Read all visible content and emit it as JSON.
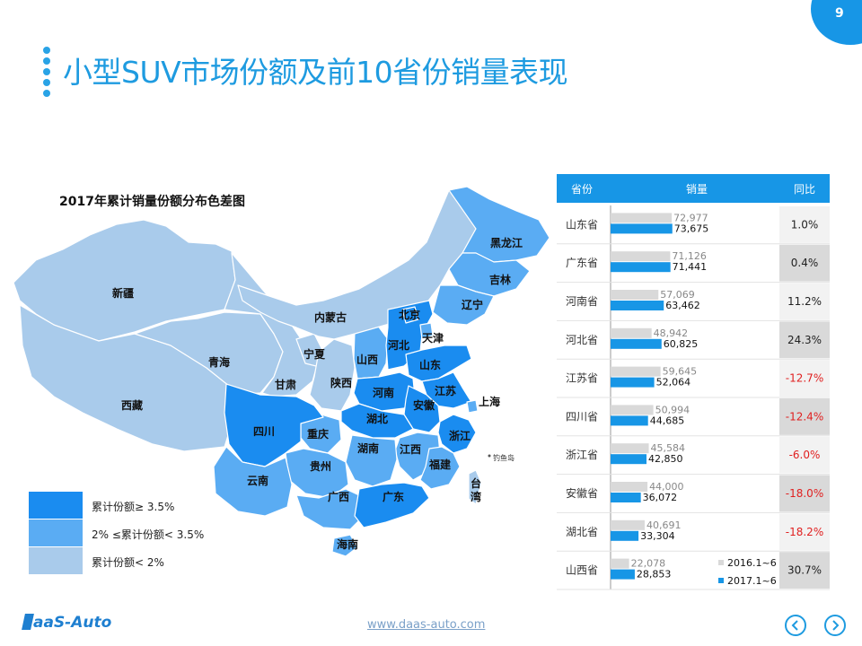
{
  "page": {
    "title": "小型SUV市场份额及前10省份销量表现",
    "page_number": "9",
    "footer_url": "www.daas-auto.com",
    "logo_text": "aaS-Auto"
  },
  "map": {
    "title": "2017年累计销量份额分布色差图",
    "legend": [
      {
        "label": "累计份额≥ 3.5%",
        "color": "#1a8cf0"
      },
      {
        "label": "2% ≤累计份额< 3.5%",
        "color": "#5aacf3"
      },
      {
        "label": "累计份额< 2%",
        "color": "#a9cbeb"
      }
    ],
    "labels": {
      "xinjiang": "新疆",
      "xizang": "西藏",
      "qinghai": "青海",
      "gansu": "甘肃",
      "neimenggu": "内蒙古",
      "ningxia": "宁夏",
      "shaanxi": "陕西",
      "shanxi": "山西",
      "sichuan": "四川",
      "chongqing": "重庆",
      "yunnan": "云南",
      "guizhou": "贵州",
      "guangxi": "广西",
      "guangdong": "广东",
      "hainan": "海南",
      "hunan": "湖南",
      "hubei": "湖北",
      "henan": "河南",
      "hebei": "河北",
      "beijing": "北京",
      "tianjin": "天津",
      "shandong": "山东",
      "jiangsu": "江苏",
      "anhui": "安徽",
      "shanghai": "上海",
      "zhejiang": "浙江",
      "jiangxi": "江西",
      "fujian": "福建",
      "taiwan_1": "台",
      "taiwan_2": "湾",
      "liaoning": "辽宁",
      "jilin": "吉林",
      "heilongjiang": "黑龙江",
      "diaoyudao": "钓鱼岛"
    }
  },
  "chart_data": {
    "type": "bar",
    "header": {
      "col1": "省份",
      "col2": "销量",
      "col3": "同比"
    },
    "categories": [
      "山东省",
      "广东省",
      "河南省",
      "河北省",
      "江苏省",
      "四川省",
      "浙江省",
      "安徽省",
      "湖北省",
      "山西省"
    ],
    "series": [
      {
        "name": "2016.1~6",
        "values": [
          72977,
          71126,
          57069,
          48942,
          59645,
          50994,
          45584,
          44000,
          40691,
          22078
        ],
        "color": "#d9d9d9"
      },
      {
        "name": "2017.1~6",
        "values": [
          73675,
          71441,
          63462,
          60825,
          52064,
          44685,
          42850,
          36072,
          33304,
          28853
        ],
        "color": "#1796e6"
      }
    ],
    "value_labels_2016": [
      "72,977",
      "71,126",
      "57,069",
      "48,942",
      "59,645",
      "50,994",
      "45,584",
      "44,000",
      "40,691",
      "22,078"
    ],
    "value_labels_2017": [
      "73,675",
      "71,441",
      "63,462",
      "60,825",
      "52,064",
      "44,685",
      "42,850",
      "36,072",
      "33,304",
      "28,853"
    ],
    "yoy": [
      "1.0%",
      "0.4%",
      "11.2%",
      "24.3%",
      "-12.7%",
      "-12.4%",
      "-6.0%",
      "-18.0%",
      "-18.2%",
      "30.7%"
    ],
    "xlim": [
      0,
      75000
    ],
    "legend_position": "bottom-right",
    "colors": {
      "header": "#1796e6",
      "negative": "#e02020",
      "positive": "#222222"
    }
  }
}
